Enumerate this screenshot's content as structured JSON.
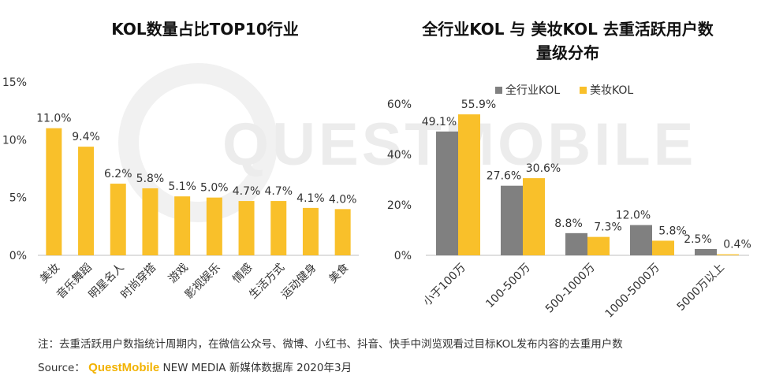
{
  "watermark": "QUESTMOBILE",
  "colors": {
    "gold": "#F9C02A",
    "gray": "#808080",
    "axis": "#bfbfbf",
    "text": "#333333"
  },
  "footnote": "注：去重活跃用户数指统计周期内，在微信公众号、微博、小红书、抖音、快手中浏览观看过目标KOL发布内容的去重用户数",
  "source": {
    "label": "Source：",
    "brand": "QuestMobile",
    "text": "NEW MEDIA 新媒体数据库 2020年3月"
  },
  "chart_data": [
    {
      "type": "bar",
      "title": "KOL数量占比TOP10行业",
      "categories": [
        "美妆",
        "音乐舞蹈",
        "明星名人",
        "时尚穿搭",
        "游戏",
        "影视娱乐",
        "情感",
        "生活方式",
        "运动健身",
        "美食"
      ],
      "values": [
        11.0,
        9.4,
        6.2,
        5.8,
        5.1,
        5.0,
        4.7,
        4.7,
        4.1,
        4.0
      ],
      "value_labels": [
        "11.0%",
        "9.4%",
        "6.2%",
        "5.8%",
        "5.1%",
        "5.0%",
        "4.7%",
        "4.7%",
        "4.1%",
        "4.0%"
      ],
      "ylim": [
        0,
        15
      ],
      "yticks": [
        0,
        5,
        10,
        15
      ],
      "ytick_labels": [
        "0%",
        "5%",
        "10%",
        "15%"
      ],
      "xlabel": "",
      "ylabel": ""
    },
    {
      "type": "bar",
      "title": "全行业KOL 与 美妆KOL 去重活跃用户数量级分布",
      "title_lines": [
        "全行业KOL 与 美妆KOL 去重活跃用户数",
        "量级分布"
      ],
      "categories": [
        "小于100万",
        "100-500万",
        "500-1000万",
        "1000-5000万",
        "5000万以上"
      ],
      "series": [
        {
          "name": "全行业KOL",
          "values": [
            49.1,
            27.6,
            8.8,
            12.0,
            2.5
          ],
          "labels": [
            "49.1%",
            "27.6%",
            "8.8%",
            "12.0%",
            "2.5%"
          ]
        },
        {
          "name": "美妆KOL",
          "values": [
            55.9,
            30.6,
            7.3,
            5.8,
            0.4
          ],
          "labels": [
            "55.9%",
            "30.6%",
            "7.3%",
            "5.8%",
            "0.4%"
          ]
        }
      ],
      "ylim": [
        0,
        60
      ],
      "yticks": [
        0,
        20,
        40,
        60
      ],
      "ytick_labels": [
        "0%",
        "20%",
        "40%",
        "60%"
      ],
      "legend_position": "top",
      "xlabel": "",
      "ylabel": ""
    }
  ]
}
